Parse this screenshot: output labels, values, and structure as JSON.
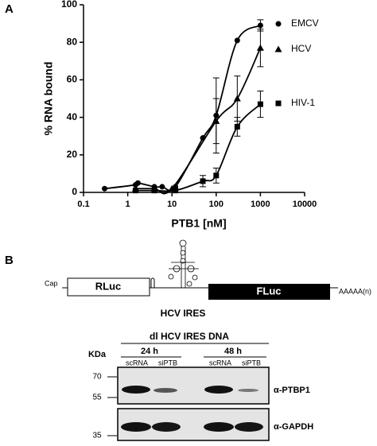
{
  "chart_data": {
    "type": "scatter",
    "xlabel": "PTB1 [nM]",
    "ylabel": "% RNA bound",
    "xlog": true,
    "xlim": [
      0.1,
      10000
    ],
    "xticks": [
      0.1,
      1,
      10,
      100,
      1000,
      10000
    ],
    "ylim": [
      0,
      100
    ],
    "yticks": [
      0,
      20,
      40,
      60,
      80,
      100
    ],
    "series": [
      {
        "name": "EMCV",
        "color": "#000000",
        "marker": "circle",
        "x": [
          0.3,
          1.5,
          1.7,
          4,
          6,
          12,
          50,
          100,
          300,
          1000
        ],
        "values": [
          2,
          4,
          5,
          3,
          3,
          3,
          29,
          41,
          81,
          89
        ],
        "errors": [
          null,
          null,
          null,
          null,
          null,
          null,
          null,
          20,
          null,
          3
        ]
      },
      {
        "name": "HCV",
        "color": "#000000",
        "marker": "triangle",
        "x": [
          1.5,
          4,
          10,
          100,
          300,
          1000
        ],
        "values": [
          2,
          2,
          2,
          38,
          50,
          77
        ],
        "errors": [
          null,
          null,
          null,
          12,
          12,
          10
        ]
      },
      {
        "name": "HIV-1",
        "color": "#000000",
        "marker": "square",
        "x": [
          1.5,
          4,
          12,
          50,
          100,
          300,
          1000
        ],
        "values": [
          1,
          1,
          1,
          6,
          9,
          35,
          47
        ],
        "errors": [
          null,
          null,
          null,
          3,
          4,
          5,
          7
        ]
      }
    ]
  },
  "panels": [
    "A",
    "B"
  ],
  "construct": {
    "cap": "Cap",
    "rluc": "RLuc",
    "ires": "HCV IRES",
    "fluc": "FLuc",
    "polya": "AAAAA(n)"
  },
  "blot": {
    "title": "dl HCV IRES DNA",
    "times": [
      "24 h",
      "48 h"
    ],
    "lanes": [
      "scRNA",
      "siPTB",
      "scRNA",
      "siPTB"
    ],
    "unit": "KDa",
    "markers": [
      "70",
      "55",
      "35"
    ],
    "antibodies": [
      "α-PTBP1",
      "α-GAPDH"
    ]
  }
}
